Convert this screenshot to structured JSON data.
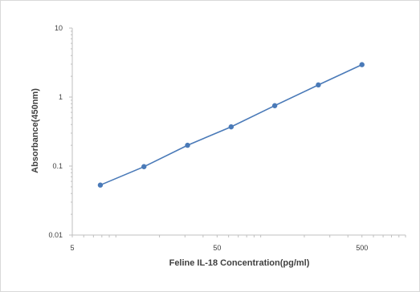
{
  "chart_data": {
    "type": "line",
    "title": "",
    "xlabel": "Feline IL-18 Concentration(pg/ml)",
    "ylabel": "Absorbance(450nm)",
    "x_scale": "log",
    "y_scale": "log",
    "xlim": [
      5,
      1000
    ],
    "ylim": [
      0.01,
      10
    ],
    "x_ticks": [
      {
        "value": 5,
        "label": "5"
      },
      {
        "value": 50,
        "label": "50"
      },
      {
        "value": 500,
        "label": "500"
      }
    ],
    "y_ticks": [
      {
        "value": 10,
        "label": "10"
      },
      {
        "value": 1,
        "label": "1"
      },
      {
        "value": 0.1,
        "label": "0.1"
      },
      {
        "value": 0.01,
        "label": "0.01"
      }
    ],
    "grid": false,
    "legend": "none",
    "series": [
      {
        "color": "#4a7ab8",
        "x": [
          7.81,
          15.63,
          31.25,
          62.5,
          125,
          250,
          500
        ],
        "y": [
          0.053,
          0.098,
          0.2,
          0.37,
          0.75,
          1.5,
          2.95
        ]
      }
    ]
  }
}
